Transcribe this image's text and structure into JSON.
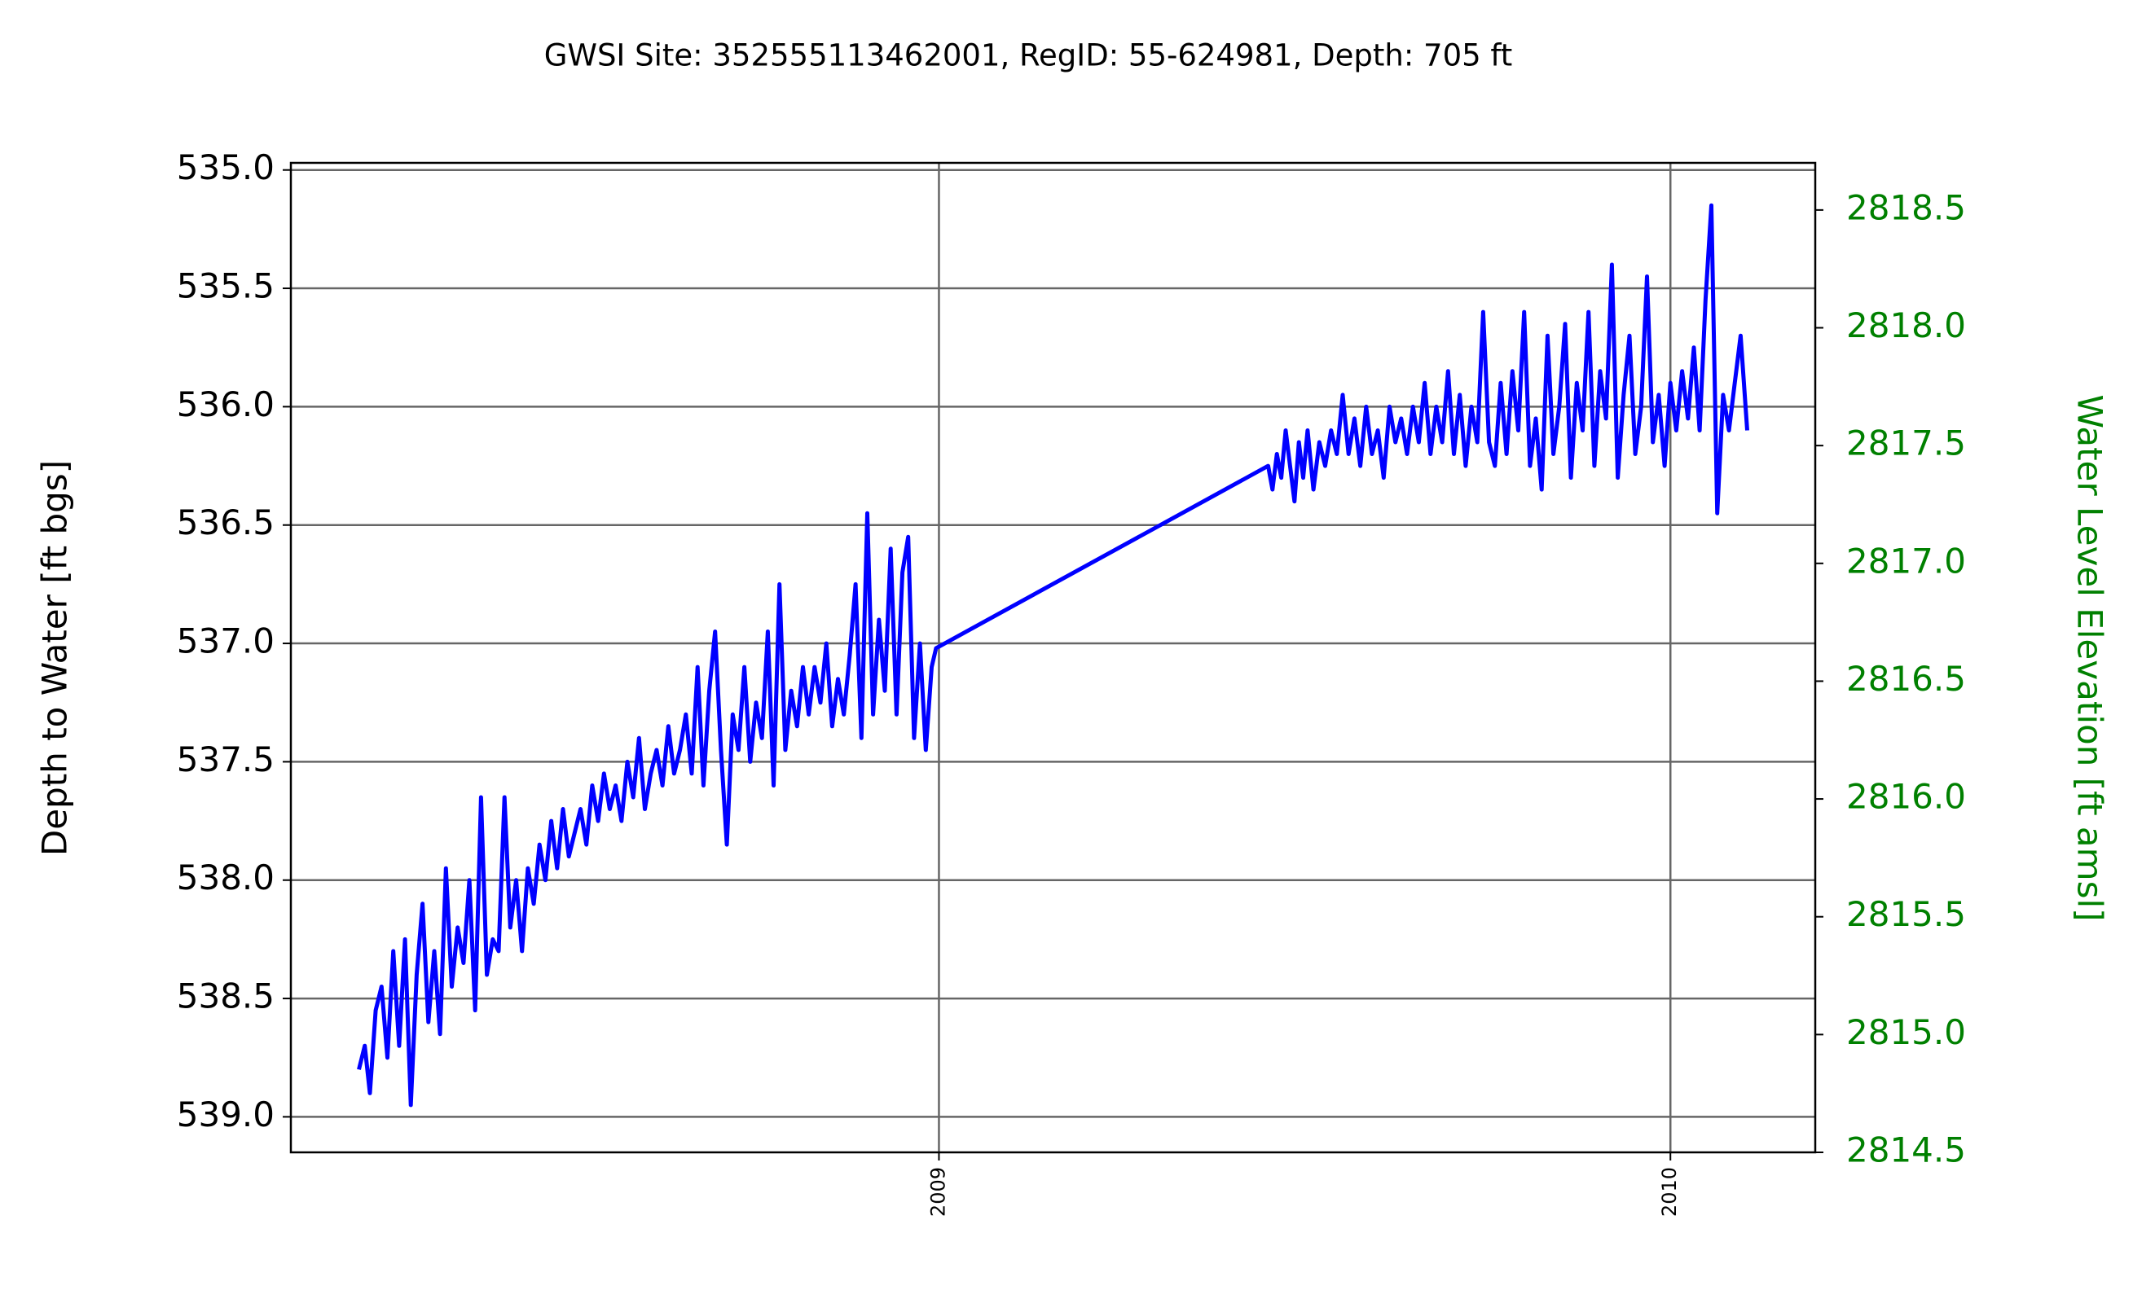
{
  "chart_data": {
    "type": "line",
    "title": "GWSI Site: 352555113462001, RegID: 55-624981, Depth: 705 ft",
    "y_label": "Depth to Water [ft bgs]",
    "y2_label": "Water Level Elevation [ft amsl]",
    "y2_color": "#008000",
    "grid": true,
    "y_inverted": true,
    "xlim": [
      2008.114,
      2010.198
    ],
    "xticks": [
      2009,
      2010
    ],
    "ylim": [
      534.97,
      539.15
    ],
    "yticks": [
      {
        "value": 535,
        "label": "535.0"
      },
      535.5,
      {
        "value": 536,
        "label": "536.0"
      },
      536.5,
      {
        "value": 537,
        "label": "537.0"
      },
      537.5,
      {
        "value": 538,
        "label": "538.0"
      },
      538.5,
      {
        "value": 539,
        "label": "539.0"
      }
    ],
    "y2lim": [
      2814.5,
      2818.7
    ],
    "y2ticks": [
      2814.5,
      {
        "value": 2815,
        "label": "2815.0"
      },
      2815.5,
      {
        "value": 2816,
        "label": "2816.0"
      },
      2816.5,
      {
        "value": 2817,
        "label": "2817.0"
      },
      2817.5,
      {
        "value": 2818,
        "label": "2818.0"
      },
      2818.5
    ],
    "series": [
      {
        "color": "#0000ff",
        "x": [
          2008.207,
          2008.215,
          2008.222,
          2008.23,
          2008.238,
          2008.246,
          2008.254,
          2008.262,
          2008.27,
          2008.278,
          2008.286,
          2008.294,
          2008.302,
          2008.31,
          2008.318,
          2008.326,
          2008.334,
          2008.342,
          2008.35,
          2008.358,
          2008.366,
          2008.374,
          2008.382,
          2008.39,
          2008.398,
          2008.406,
          2008.414,
          2008.422,
          2008.43,
          2008.438,
          2008.446,
          2008.454,
          2008.462,
          2008.47,
          2008.478,
          2008.486,
          2008.494,
          2008.502,
          2008.51,
          2008.518,
          2008.526,
          2008.534,
          2008.542,
          2008.55,
          2008.558,
          2008.566,
          2008.574,
          2008.582,
          2008.59,
          2008.598,
          2008.606,
          2008.614,
          2008.622,
          2008.63,
          2008.638,
          2008.646,
          2008.654,
          2008.662,
          2008.67,
          2008.678,
          2008.686,
          2008.694,
          2008.702,
          2008.71,
          2008.718,
          2008.726,
          2008.734,
          2008.742,
          2008.75,
          2008.758,
          2008.766,
          2008.774,
          2008.782,
          2008.79,
          2008.798,
          2008.806,
          2008.814,
          2008.822,
          2008.83,
          2008.838,
          2008.846,
          2008.854,
          2008.862,
          2008.87,
          2008.878,
          2008.886,
          2008.894,
          2008.902,
          2008.91,
          2008.918,
          2008.926,
          2008.934,
          2008.942,
          2008.95,
          2008.958,
          2008.966,
          2008.974,
          2008.982,
          2008.99,
          2008.996,
          2009.45,
          2009.456,
          2009.462,
          2009.468,
          2009.474,
          2009.48,
          2009.486,
          2009.492,
          2009.498,
          2009.504,
          2009.512,
          2009.52,
          2009.528,
          2009.536,
          2009.544,
          2009.552,
          2009.56,
          2009.568,
          2009.576,
          2009.584,
          2009.592,
          2009.6,
          2009.608,
          2009.616,
          2009.624,
          2009.632,
          2009.64,
          2009.648,
          2009.656,
          2009.664,
          2009.672,
          2009.68,
          2009.688,
          2009.696,
          2009.704,
          2009.712,
          2009.72,
          2009.728,
          2009.736,
          2009.744,
          2009.752,
          2009.76,
          2009.768,
          2009.776,
          2009.784,
          2009.792,
          2009.8,
          2009.808,
          2009.816,
          2009.824,
          2009.832,
          2009.84,
          2009.848,
          2009.856,
          2009.864,
          2009.872,
          2009.88,
          2009.888,
          2009.896,
          2009.904,
          2009.912,
          2009.92,
          2009.928,
          2009.936,
          2009.944,
          2009.952,
          2009.96,
          2009.968,
          2009.976,
          2009.984,
          2009.992,
          2010.0,
          2010.008,
          2010.016,
          2010.024,
          2010.032,
          2010.04,
          2010.048,
          2010.056,
          2010.064,
          2010.072,
          2010.08,
          2010.088,
          2010.096,
          2010.105
        ],
        "values": [
          538.8,
          538.7,
          538.9,
          538.55,
          538.45,
          538.75,
          538.3,
          538.7,
          538.25,
          538.95,
          538.4,
          538.1,
          538.6,
          538.3,
          538.65,
          537.95,
          538.45,
          538.2,
          538.35,
          538.0,
          538.55,
          537.65,
          538.4,
          538.25,
          538.3,
          537.65,
          538.2,
          538.0,
          538.3,
          537.95,
          538.1,
          537.85,
          538.0,
          537.75,
          537.95,
          537.7,
          537.9,
          537.8,
          537.7,
          537.85,
          537.6,
          537.75,
          537.55,
          537.7,
          537.6,
          537.75,
          537.5,
          537.65,
          537.4,
          537.7,
          537.55,
          537.45,
          537.6,
          537.35,
          537.55,
          537.45,
          537.3,
          537.55,
          537.1,
          537.6,
          537.2,
          536.95,
          537.45,
          537.85,
          537.3,
          537.45,
          537.1,
          537.5,
          537.25,
          537.4,
          536.95,
          537.6,
          536.75,
          537.45,
          537.2,
          537.35,
          537.1,
          537.3,
          537.1,
          537.25,
          537.0,
          537.35,
          537.15,
          537.3,
          537.05,
          536.75,
          537.4,
          536.45,
          537.3,
          536.9,
          537.2,
          536.6,
          537.3,
          536.7,
          536.55,
          537.4,
          537.0,
          537.45,
          537.1,
          537.02,
          536.25,
          536.35,
          536.2,
          536.3,
          536.1,
          536.25,
          536.4,
          536.15,
          536.3,
          536.1,
          536.35,
          536.15,
          536.25,
          536.1,
          536.2,
          535.95,
          536.2,
          536.05,
          536.25,
          536.0,
          536.2,
          536.1,
          536.3,
          536.0,
          536.15,
          536.05,
          536.2,
          536.0,
          536.15,
          535.9,
          536.2,
          536.0,
          536.15,
          535.85,
          536.2,
          535.95,
          536.25,
          536.0,
          536.15,
          535.6,
          536.15,
          536.25,
          535.9,
          536.2,
          535.85,
          536.1,
          535.6,
          536.25,
          536.05,
          536.35,
          535.7,
          536.2,
          536.0,
          535.65,
          536.3,
          535.9,
          536.1,
          535.6,
          536.25,
          535.85,
          536.05,
          535.4,
          536.3,
          535.95,
          535.7,
          536.2,
          536.0,
          535.45,
          536.15,
          535.95,
          536.25,
          535.9,
          536.1,
          535.85,
          536.05,
          535.75,
          536.1,
          535.55,
          535.15,
          536.45,
          535.95,
          536.1,
          535.9,
          535.7,
          536.1
        ]
      }
    ]
  }
}
